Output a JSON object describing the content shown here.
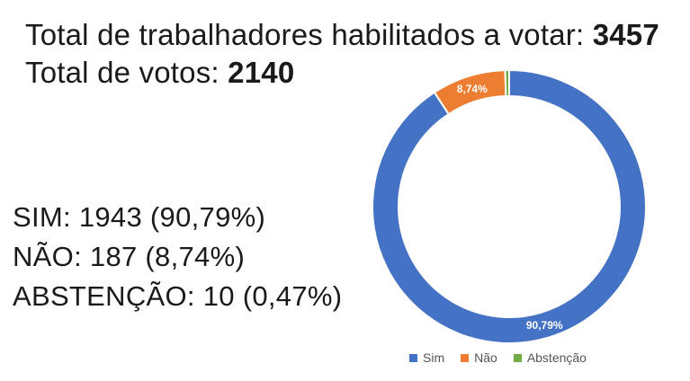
{
  "header": {
    "line1_label": "Total de trabalhadores habilitados a votar: ",
    "line1_value": "3457",
    "line2_label": "Total de votos: ",
    "line2_value": "2140"
  },
  "stats": {
    "sim": "SIM: 1943 (90,79%)",
    "nao": "NÃO: 187 (8,74%)",
    "abstencao": "ABSTENÇÃO: 10 (0,47%)"
  },
  "chart_data": {
    "type": "pie",
    "variant": "donut",
    "categories": [
      "Sim",
      "Não",
      "Abstenção"
    ],
    "values": [
      90.79,
      8.74,
      0.47
    ],
    "data_labels": [
      "90,79%",
      "8,74%",
      ""
    ],
    "colors": [
      "#4472C4",
      "#ED7D31",
      "#70AD47"
    ],
    "legend": [
      "Sim",
      "Não",
      "Abstenção"
    ],
    "legend_position": "bottom",
    "title": ""
  }
}
